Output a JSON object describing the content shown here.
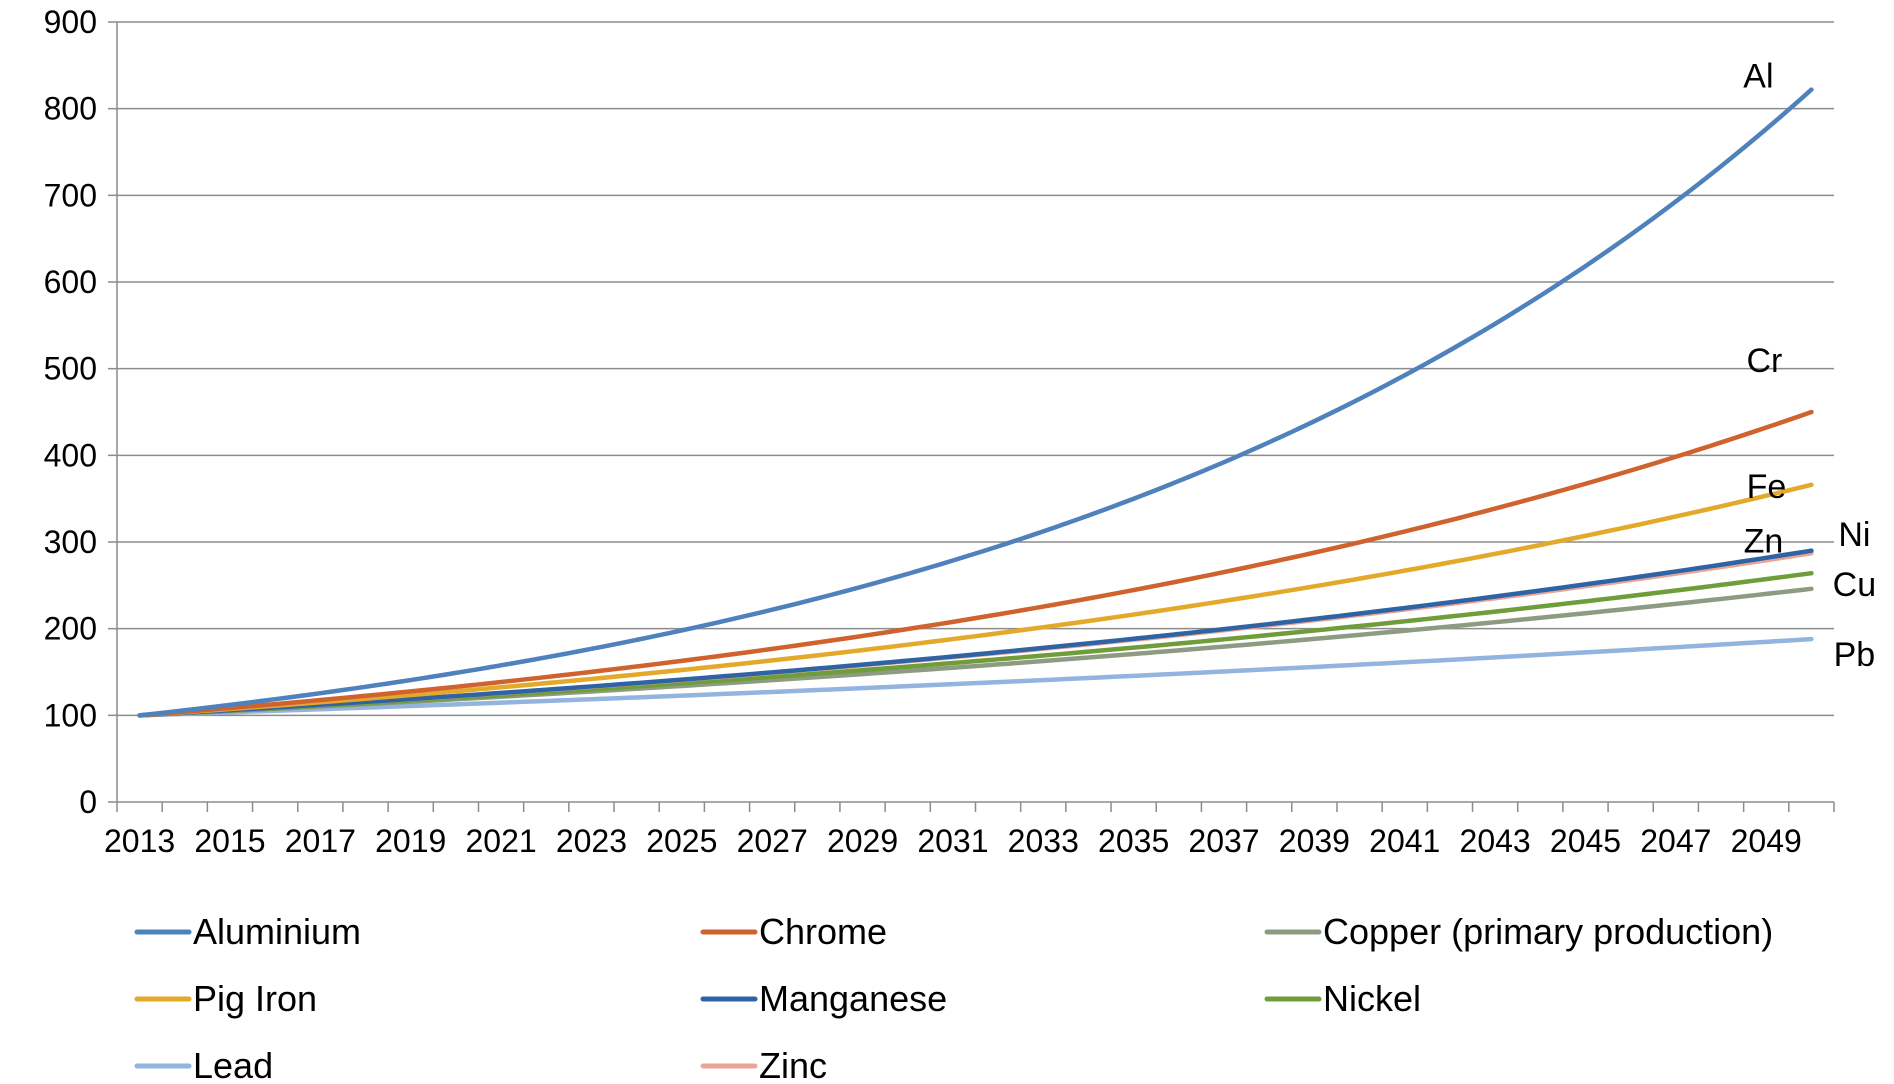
{
  "chart_data": {
    "type": "line",
    "title": "",
    "xlabel": "",
    "ylabel": "",
    "ylim": [
      0,
      900
    ],
    "yticks": [
      0,
      100,
      200,
      300,
      400,
      500,
      600,
      700,
      800,
      900
    ],
    "x_start": 2013,
    "x_end": 2050,
    "xtick_labels": [
      "2013",
      "2015",
      "2017",
      "2019",
      "2021",
      "2023",
      "2025",
      "2027",
      "2029",
      "2031",
      "2033",
      "2035",
      "2037",
      "2039",
      "2041",
      "2043",
      "2045",
      "2047",
      "2049"
    ],
    "grid": true,
    "legend_position": "bottom",
    "series": [
      {
        "name": "Aluminium",
        "color": "#4f81bd",
        "end_value": 822,
        "end_label": "Al"
      },
      {
        "name": "Chrome",
        "color": "#d0622d",
        "end_value": 450,
        "end_label": "Cr"
      },
      {
        "name": "Copper (primary production)",
        "color": "#8d9b82",
        "end_value": 246,
        "end_label": "Cu"
      },
      {
        "name": "Pig Iron",
        "color": "#e3a92a",
        "end_value": 366,
        "end_label": "Fe"
      },
      {
        "name": "Manganese",
        "color": "#2e63a4",
        "end_value": 290,
        "end_label": ""
      },
      {
        "name": "Nickel",
        "color": "#6f9d3a",
        "end_value": 264,
        "end_label": "Ni"
      },
      {
        "name": "Lead",
        "color": "#92b4df",
        "end_value": 188,
        "end_label": "Pb"
      },
      {
        "name": "Zinc",
        "color": "#eba596",
        "end_value": 287,
        "end_label": "Zn"
      }
    ]
  }
}
